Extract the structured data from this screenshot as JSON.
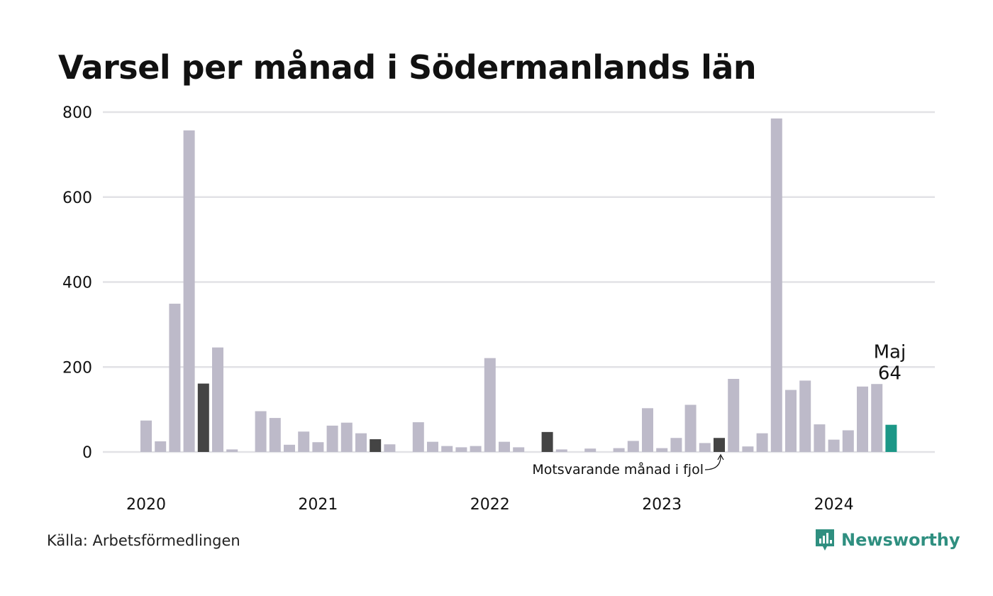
{
  "chart_data": {
    "type": "bar",
    "title": "Varsel per månad i Södermanlands län",
    "ylim": [
      0,
      800
    ],
    "yticks": [
      "0",
      "200",
      "400",
      "600",
      "800"
    ],
    "year_labels": [
      "2020",
      "2021",
      "2022",
      "2023",
      "2024"
    ],
    "grid": true,
    "months": [
      "2020-01",
      "2020-02",
      "2020-03",
      "2020-04",
      "2020-05",
      "2020-06",
      "2020-07",
      "2020-08",
      "2020-09",
      "2020-10",
      "2020-11",
      "2020-12",
      "2021-01",
      "2021-02",
      "2021-03",
      "2021-04",
      "2021-05",
      "2021-06",
      "2021-07",
      "2021-08",
      "2021-09",
      "2021-10",
      "2021-11",
      "2021-12",
      "2022-01",
      "2022-02",
      "2022-03",
      "2022-04",
      "2022-05",
      "2022-06",
      "2022-07",
      "2022-08",
      "2022-09",
      "2022-10",
      "2022-11",
      "2022-12",
      "2023-01",
      "2023-02",
      "2023-03",
      "2023-04",
      "2023-05",
      "2023-06",
      "2023-07",
      "2023-08",
      "2023-09",
      "2023-10",
      "2023-11",
      "2023-12",
      "2024-01",
      "2024-02",
      "2024-03",
      "2024-04",
      "2024-05"
    ],
    "values": [
      74,
      25,
      349,
      757,
      161,
      246,
      6,
      0,
      96,
      80,
      17,
      48,
      23,
      62,
      69,
      44,
      30,
      18,
      0,
      70,
      24,
      14,
      11,
      14,
      221,
      24,
      11,
      0,
      47,
      6,
      0,
      8,
      0,
      9,
      26,
      103,
      9,
      33,
      111,
      21,
      33,
      172,
      13,
      44,
      785,
      146,
      168,
      65,
      29,
      51,
      154,
      160,
      64
    ],
    "highlight_may_indices": [
      4,
      16,
      28,
      40
    ],
    "current_index": 52,
    "current_label": "Maj",
    "current_value_label": "64",
    "annotation": "Motsvarande månad i fjol",
    "colors": {
      "bar": "#bdbac9",
      "highlight": "#444444",
      "current": "#1c9787",
      "grid": "#e2e2e6"
    }
  },
  "footer": {
    "source": "Källa: Arbetsförmedlingen",
    "brand": "Newsworthy",
    "brand_icon": "newsworthy-logo-icon"
  }
}
